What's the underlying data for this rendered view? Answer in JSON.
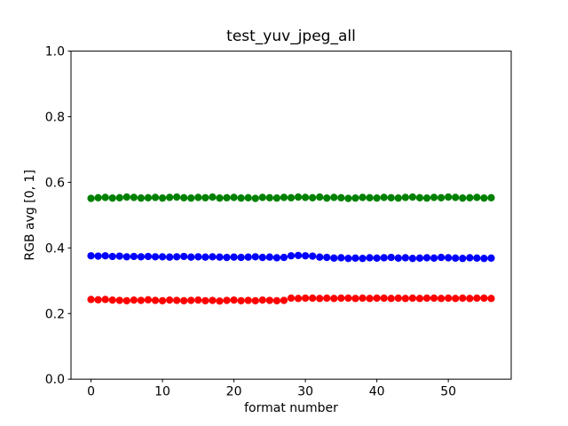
{
  "chart_data": {
    "type": "scatter",
    "title": "test_yuv_jpeg_all",
    "xlabel": "format number",
    "ylabel": "RGB avg [0, 1]",
    "xlim": [
      -2.8,
      58.8
    ],
    "ylim": [
      0.0,
      1.0
    ],
    "xticks": [
      "0",
      "10",
      "20",
      "30",
      "40",
      "50"
    ],
    "yticks": [
      "0.0",
      "0.2",
      "0.4",
      "0.6",
      "0.8",
      "1.0"
    ],
    "grid": false,
    "legend": false,
    "marker": "circle",
    "marker_diameter_px": 8.3,
    "x": [
      0,
      1,
      2,
      3,
      4,
      5,
      6,
      7,
      8,
      9,
      10,
      11,
      12,
      13,
      14,
      15,
      16,
      17,
      18,
      19,
      20,
      21,
      22,
      23,
      24,
      25,
      26,
      27,
      28,
      29,
      30,
      31,
      32,
      33,
      34,
      35,
      36,
      37,
      38,
      39,
      40,
      41,
      42,
      43,
      44,
      45,
      46,
      47,
      48,
      49,
      50,
      51,
      52,
      53,
      54,
      55,
      56
    ],
    "series": [
      {
        "name": "green",
        "color": "#008000",
        "values": [
          0.551,
          0.553,
          0.554,
          0.552,
          0.553,
          0.555,
          0.554,
          0.552,
          0.553,
          0.554,
          0.552,
          0.554,
          0.555,
          0.553,
          0.552,
          0.554,
          0.553,
          0.555,
          0.552,
          0.553,
          0.554,
          0.552,
          0.553,
          0.551,
          0.554,
          0.553,
          0.552,
          0.554,
          0.553,
          0.555,
          0.554,
          0.553,
          0.555,
          0.552,
          0.554,
          0.553,
          0.551,
          0.552,
          0.554,
          0.553,
          0.552,
          0.554,
          0.553,
          0.552,
          0.554,
          0.555,
          0.553,
          0.552,
          0.554,
          0.553,
          0.555,
          0.554,
          0.552,
          0.553,
          0.554,
          0.552,
          0.553
        ]
      },
      {
        "name": "blue",
        "color": "#0000ff",
        "values": [
          0.376,
          0.375,
          0.376,
          0.374,
          0.375,
          0.373,
          0.374,
          0.373,
          0.374,
          0.373,
          0.373,
          0.372,
          0.373,
          0.374,
          0.372,
          0.373,
          0.372,
          0.373,
          0.372,
          0.371,
          0.372,
          0.371,
          0.372,
          0.373,
          0.371,
          0.372,
          0.37,
          0.371,
          0.376,
          0.377,
          0.376,
          0.375,
          0.372,
          0.371,
          0.369,
          0.37,
          0.368,
          0.369,
          0.368,
          0.37,
          0.369,
          0.37,
          0.371,
          0.369,
          0.37,
          0.368,
          0.369,
          0.37,
          0.369,
          0.371,
          0.37,
          0.369,
          0.368,
          0.37,
          0.369,
          0.368,
          0.369
        ]
      },
      {
        "name": "red",
        "color": "#ff0000",
        "values": [
          0.243,
          0.242,
          0.243,
          0.241,
          0.24,
          0.239,
          0.241,
          0.24,
          0.242,
          0.24,
          0.239,
          0.241,
          0.24,
          0.239,
          0.24,
          0.241,
          0.239,
          0.24,
          0.238,
          0.24,
          0.241,
          0.239,
          0.24,
          0.239,
          0.241,
          0.24,
          0.239,
          0.24,
          0.247,
          0.246,
          0.247,
          0.247,
          0.246,
          0.247,
          0.246,
          0.247,
          0.247,
          0.246,
          0.247,
          0.246,
          0.247,
          0.247,
          0.246,
          0.247,
          0.246,
          0.247,
          0.246,
          0.247,
          0.247,
          0.246,
          0.247,
          0.246,
          0.247,
          0.246,
          0.247,
          0.247,
          0.246
        ]
      }
    ]
  }
}
